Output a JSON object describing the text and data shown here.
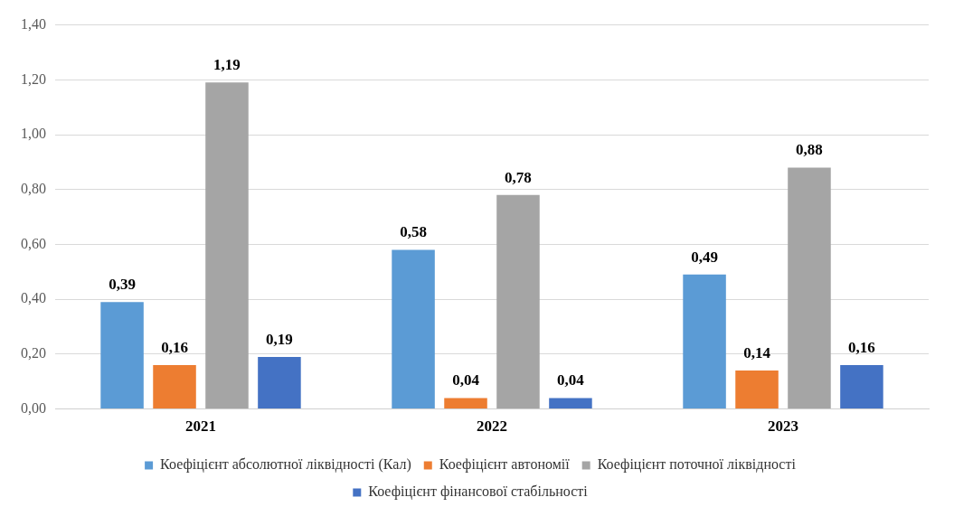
{
  "chart_data": {
    "type": "bar",
    "categories": [
      "2021",
      "2022",
      "2023"
    ],
    "series": [
      {
        "name": "Коефіцієнт абсолютної ліквідності (Кал)",
        "color": "#5b9bd5",
        "values": [
          0.39,
          0.58,
          0.49
        ],
        "value_labels": [
          "0,39",
          "0,58",
          "0,49"
        ]
      },
      {
        "name": "Коефіцієнт автономії",
        "color": "#ed7d31",
        "values": [
          0.16,
          0.04,
          0.14
        ],
        "value_labels": [
          "0,16",
          "0,04",
          "0,14"
        ]
      },
      {
        "name": "Коефіцієнт поточної ліквідності",
        "color": "#a5a5a5",
        "values": [
          1.19,
          0.78,
          0.88
        ],
        "value_labels": [
          "1,19",
          "0,78",
          "0,88"
        ]
      },
      {
        "name": "Коефіцієнт фінансової стабільності",
        "color": "#4472c4",
        "values": [
          0.19,
          0.04,
          0.16
        ],
        "value_labels": [
          "0,19",
          "0,04",
          "0,16"
        ]
      }
    ],
    "ylim": [
      0,
      1.4
    ],
    "yticks": [
      {
        "value": 0,
        "label": "0,00"
      },
      {
        "value": 0.2,
        "label": "0,20"
      },
      {
        "value": 0.4,
        "label": "0,40"
      },
      {
        "value": 0.6,
        "label": "0,60"
      },
      {
        "value": 0.8,
        "label": "0,80"
      },
      {
        "value": 1.0,
        "label": "1,00"
      },
      {
        "value": 1.2,
        "label": "1,20"
      },
      {
        "value": 1.4,
        "label": "1,40"
      }
    ],
    "grid": "y",
    "legend": "bottom"
  }
}
